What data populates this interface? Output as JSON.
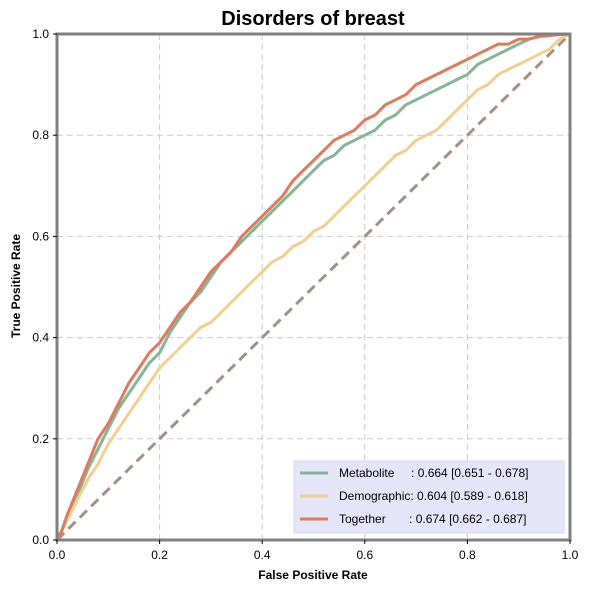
{
  "chart_data": {
    "type": "line",
    "title": "Disorders of breast",
    "xlabel": "False Positive Rate",
    "ylabel": "True Positive Rate",
    "xlim": [
      0,
      1
    ],
    "ylim": [
      0,
      1
    ],
    "xticks": [
      "0.0",
      "0.2",
      "0.4",
      "0.6",
      "0.8",
      "1.0"
    ],
    "yticks": [
      "0.0",
      "0.2",
      "0.4",
      "0.6",
      "0.8",
      "1.0"
    ],
    "grid": true,
    "legend_position": "bottom-right",
    "series": [
      {
        "name": "Metabolite",
        "legend_label": "Metabolite     : 0.664 [0.651 - 0.678]",
        "color": "#86b596",
        "x": [
          0,
          0.01,
          0.02,
          0.04,
          0.06,
          0.08,
          0.1,
          0.12,
          0.14,
          0.16,
          0.18,
          0.2,
          0.22,
          0.24,
          0.26,
          0.28,
          0.3,
          0.32,
          0.34,
          0.36,
          0.38,
          0.4,
          0.42,
          0.44,
          0.46,
          0.48,
          0.5,
          0.52,
          0.54,
          0.56,
          0.58,
          0.6,
          0.62,
          0.64,
          0.66,
          0.68,
          0.7,
          0.72,
          0.74,
          0.76,
          0.78,
          0.8,
          0.82,
          0.84,
          0.86,
          0.88,
          0.9,
          0.92,
          0.94,
          0.96,
          0.98,
          1.0
        ],
        "y": [
          0,
          0.02,
          0.05,
          0.09,
          0.14,
          0.18,
          0.22,
          0.26,
          0.29,
          0.32,
          0.35,
          0.37,
          0.41,
          0.44,
          0.47,
          0.49,
          0.52,
          0.55,
          0.57,
          0.59,
          0.61,
          0.63,
          0.65,
          0.67,
          0.69,
          0.71,
          0.73,
          0.75,
          0.76,
          0.78,
          0.79,
          0.8,
          0.81,
          0.83,
          0.84,
          0.86,
          0.87,
          0.88,
          0.89,
          0.9,
          0.91,
          0.92,
          0.94,
          0.95,
          0.96,
          0.97,
          0.98,
          0.99,
          0.995,
          0.997,
          0.999,
          1.0
        ]
      },
      {
        "name": "Demographic",
        "legend_label": "Demographic: 0.604 [0.589 - 0.618]",
        "color": "#f3cf8f",
        "x": [
          0,
          0.01,
          0.02,
          0.04,
          0.06,
          0.08,
          0.1,
          0.12,
          0.14,
          0.16,
          0.18,
          0.2,
          0.22,
          0.24,
          0.26,
          0.28,
          0.3,
          0.32,
          0.34,
          0.36,
          0.38,
          0.4,
          0.42,
          0.44,
          0.46,
          0.48,
          0.5,
          0.52,
          0.54,
          0.56,
          0.58,
          0.6,
          0.62,
          0.64,
          0.66,
          0.68,
          0.7,
          0.72,
          0.74,
          0.76,
          0.78,
          0.8,
          0.82,
          0.84,
          0.86,
          0.88,
          0.9,
          0.92,
          0.94,
          0.96,
          0.98,
          1.0
        ],
        "y": [
          0,
          0.02,
          0.04,
          0.08,
          0.12,
          0.15,
          0.19,
          0.22,
          0.25,
          0.28,
          0.31,
          0.34,
          0.36,
          0.38,
          0.4,
          0.42,
          0.43,
          0.45,
          0.47,
          0.49,
          0.51,
          0.53,
          0.55,
          0.56,
          0.58,
          0.59,
          0.61,
          0.62,
          0.64,
          0.66,
          0.68,
          0.7,
          0.72,
          0.74,
          0.76,
          0.77,
          0.79,
          0.8,
          0.81,
          0.83,
          0.85,
          0.87,
          0.89,
          0.9,
          0.92,
          0.93,
          0.94,
          0.95,
          0.96,
          0.97,
          0.99,
          1.0
        ]
      },
      {
        "name": "Together",
        "legend_label": "Together       : 0.674 [0.662 - 0.687]",
        "color": "#e07a5f",
        "x": [
          0,
          0.01,
          0.02,
          0.04,
          0.06,
          0.08,
          0.1,
          0.12,
          0.14,
          0.16,
          0.18,
          0.2,
          0.22,
          0.24,
          0.26,
          0.28,
          0.3,
          0.32,
          0.34,
          0.36,
          0.38,
          0.4,
          0.42,
          0.44,
          0.46,
          0.48,
          0.5,
          0.52,
          0.54,
          0.56,
          0.58,
          0.6,
          0.62,
          0.64,
          0.66,
          0.68,
          0.7,
          0.72,
          0.74,
          0.76,
          0.78,
          0.8,
          0.82,
          0.84,
          0.86,
          0.88,
          0.9,
          0.92,
          0.94,
          0.96,
          0.98,
          1.0
        ],
        "y": [
          0,
          0.02,
          0.05,
          0.1,
          0.15,
          0.2,
          0.23,
          0.27,
          0.31,
          0.34,
          0.37,
          0.39,
          0.42,
          0.45,
          0.47,
          0.5,
          0.53,
          0.55,
          0.57,
          0.6,
          0.62,
          0.64,
          0.66,
          0.68,
          0.71,
          0.73,
          0.75,
          0.77,
          0.79,
          0.8,
          0.81,
          0.83,
          0.84,
          0.86,
          0.87,
          0.88,
          0.9,
          0.91,
          0.92,
          0.93,
          0.94,
          0.95,
          0.96,
          0.97,
          0.98,
          0.98,
          0.99,
          0.99,
          0.995,
          0.997,
          0.999,
          1.0
        ]
      }
    ],
    "reference_line": {
      "x": [
        0,
        1
      ],
      "y": [
        0,
        1
      ],
      "style": "dashed",
      "color": "#a89080"
    }
  }
}
